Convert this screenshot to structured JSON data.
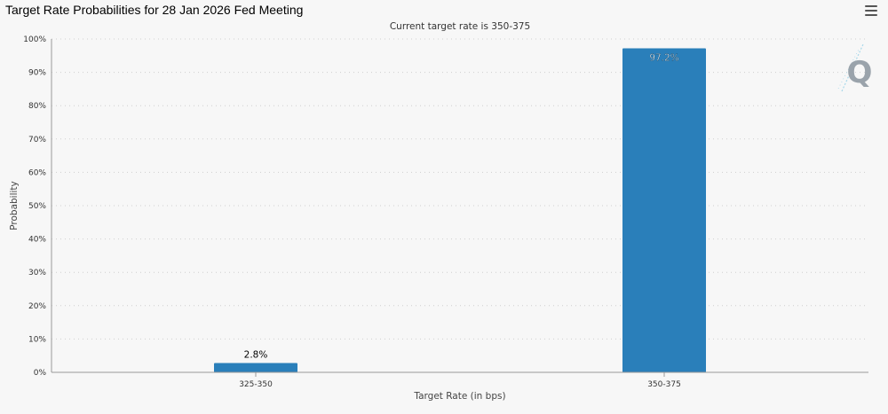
{
  "header": {
    "title": "Target Rate Probabilities for 28 Jan 2026 Fed Meeting"
  },
  "menu": {
    "icon": "hamburger-menu-icon"
  },
  "watermark": {
    "letter": "Q"
  },
  "chart_data": {
    "type": "bar",
    "subtitle": "Current target rate is 350-375",
    "xlabel": "Target Rate (in bps)",
    "ylabel": "Probability",
    "categories": [
      "325-350",
      "350-375"
    ],
    "values": [
      2.8,
      97.2
    ],
    "data_labels": [
      "2.8%",
      "97.2%"
    ],
    "ylim": [
      0,
      100
    ],
    "yticks": [
      0,
      10,
      20,
      30,
      40,
      50,
      60,
      70,
      80,
      90,
      100
    ],
    "ytick_labels": [
      "0%",
      "10%",
      "20%",
      "30%",
      "40%",
      "50%",
      "60%",
      "70%",
      "80%",
      "90%",
      "100%"
    ],
    "grid": "horizontal dotted",
    "colors": {
      "bar": "#2a7fba",
      "grid": "#cfcfcf",
      "axis": "#999999",
      "watermark": "#9aa3ab"
    }
  }
}
